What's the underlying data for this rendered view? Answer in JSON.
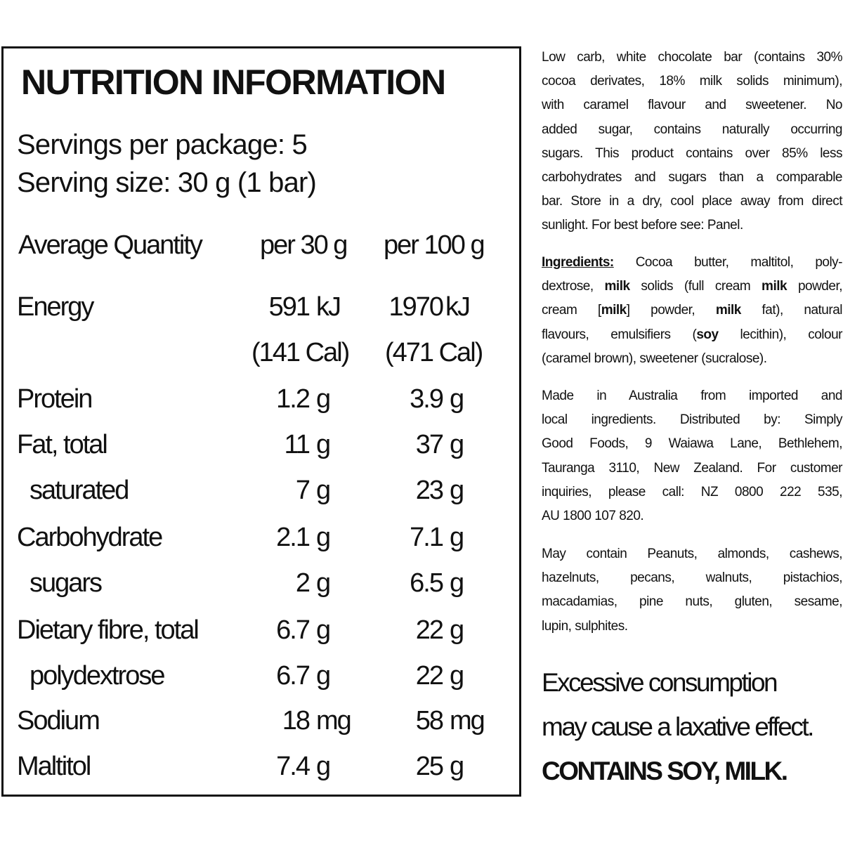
{
  "panel": {
    "title": "NUTRITION INFORMATION",
    "servings_per_package": "Servings per package: 5",
    "serving_size": "Serving size: 30 g (1 bar)",
    "headers": {
      "label": "Average Quantity",
      "per_serving": "per 30 g",
      "per_100g": "per 100 g"
    },
    "rows": [
      {
        "label": "Energy",
        "indent": false,
        "a_num": "591",
        "a_unit": "kJ",
        "b_num": "1970",
        "b_unit": "kJ",
        "a_sub": "(141 Cal)",
        "b_sub": "(471 Cal)"
      },
      {
        "label": "Protein",
        "indent": false,
        "a_num": "1.2",
        "a_unit": "g",
        "b_num": "3.9",
        "b_unit": "g"
      },
      {
        "label": "Fat, total",
        "indent": false,
        "a_num": "11",
        "a_unit": "g",
        "b_num": "37",
        "b_unit": "g"
      },
      {
        "label": "saturated",
        "indent": true,
        "a_num": "7",
        "a_unit": "g",
        "b_num": "23",
        "b_unit": "g"
      },
      {
        "label": "Carbohydrate",
        "indent": false,
        "a_num": "2.1",
        "a_unit": "g",
        "b_num": "7.1",
        "b_unit": "g"
      },
      {
        "label": "sugars",
        "indent": true,
        "a_num": "2",
        "a_unit": "g",
        "b_num": "6.5",
        "b_unit": "g"
      },
      {
        "label": "Dietary fibre, total",
        "indent": false,
        "a_num": "6.7",
        "a_unit": "g",
        "b_num": "22",
        "b_unit": "g"
      },
      {
        "label": "polydextrose",
        "indent": true,
        "a_num": "6.7",
        "a_unit": "g",
        "b_num": "22",
        "b_unit": "g"
      },
      {
        "label": "Sodium",
        "indent": false,
        "a_num": "18",
        "a_unit": "mg",
        "b_num": "58",
        "b_unit": "mg"
      },
      {
        "label": "Maltitol",
        "indent": false,
        "a_num": "7.4",
        "a_unit": "g",
        "b_num": "25",
        "b_unit": "g"
      }
    ]
  },
  "side": {
    "paragraphs": [
      [
        [
          {
            "t": "Low carb, white chocolate bar (contains 30%"
          }
        ],
        [
          {
            "t": "cocoa derivates, 18% milk solids minimum),"
          }
        ],
        [
          {
            "t": "with caramel flavour and sweetener. No"
          }
        ],
        [
          {
            "t": "added sugar, contains naturally occurring"
          }
        ],
        [
          {
            "t": "sugars. This product contains over 85% less"
          }
        ],
        [
          {
            "t": "carbohydrates and sugars than a comparable"
          }
        ],
        [
          {
            "t": "bar. Store in a dry, cool place away from direct"
          }
        ],
        [
          {
            "t": "sunlight. For best before see: Panel."
          }
        ]
      ],
      [
        [
          {
            "t": "Ingredients:",
            "b": true,
            "u": true
          },
          {
            "t": " Cocoa butter, maltitol, poly-"
          }
        ],
        [
          {
            "t": "dextrose, "
          },
          {
            "t": "milk",
            "b": true
          },
          {
            "t": " solids (full cream "
          },
          {
            "t": "milk",
            "b": true
          },
          {
            "t": " powder,"
          }
        ],
        [
          {
            "t": "cream ["
          },
          {
            "t": "milk",
            "b": true
          },
          {
            "t": "] powder, "
          },
          {
            "t": "milk",
            "b": true
          },
          {
            "t": " fat), natural"
          }
        ],
        [
          {
            "t": "flavours, emulsifiers ("
          },
          {
            "t": "soy",
            "b": true
          },
          {
            "t": " lecithin), colour"
          }
        ],
        [
          {
            "t": "(caramel brown), sweetener (sucralose)."
          }
        ]
      ],
      [
        [
          {
            "t": "Made in Australia from imported and"
          }
        ],
        [
          {
            "t": "local ingredients. Distributed by: Simply"
          }
        ],
        [
          {
            "t": "Good Foods, 9 Waiawa Lane, Bethlehem,"
          }
        ],
        [
          {
            "t": "Tauranga 3110, New Zealand. For customer"
          }
        ],
        [
          {
            "t": "inquiries, please call: NZ 0800 222 535,"
          }
        ],
        [
          {
            "t": "AU 1800 107 820."
          }
        ]
      ],
      [
        [
          {
            "t": "May contain Peanuts, almonds, cashews,"
          }
        ],
        [
          {
            "t": "hazelnuts, pecans, walnuts, pistachios,"
          }
        ],
        [
          {
            "t": "macadamias, pine nuts, gluten, sesame,"
          }
        ],
        [
          {
            "t": "lupin, sulphites."
          }
        ]
      ]
    ],
    "warning_line1": "Excessive consumption",
    "warning_line2": "may cause a laxative effect.",
    "allergen": "CONTAINS SOY, MILK."
  }
}
